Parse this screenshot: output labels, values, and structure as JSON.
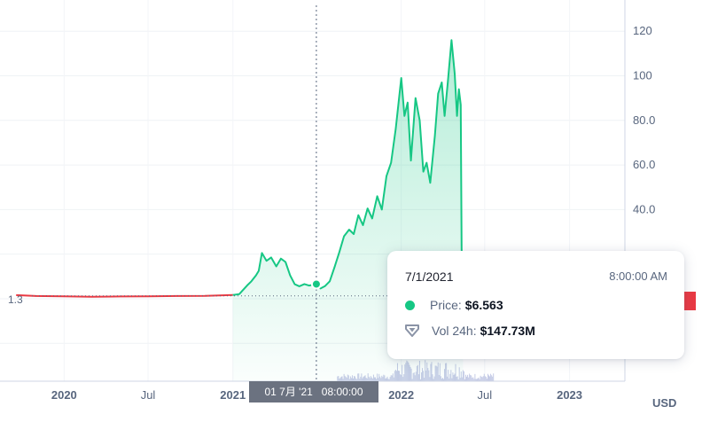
{
  "chart_data": {
    "type": "line",
    "title": "",
    "y_ticks": [
      "40.0",
      "60.0",
      "80.0",
      "100",
      "120"
    ],
    "x_ticks": [
      {
        "label": "2020",
        "bold": true,
        "date": "2020-01-01"
      },
      {
        "label": "Jul",
        "bold": false,
        "date": "2020-07-01"
      },
      {
        "label": "2021",
        "bold": true,
        "date": "2021-01-01"
      },
      {
        "label": "2022",
        "bold": true,
        "date": "2022-01-01"
      },
      {
        "label": "Jul",
        "bold": false,
        "date": "2022-07-01"
      },
      {
        "label": "2023",
        "bold": true,
        "date": "2023-01-01"
      }
    ],
    "x_range": [
      "2019-08-15",
      "2023-05-01"
    ],
    "y_range": [
      -37,
      134
    ],
    "unit": "USD",
    "reference_label": "1.3",
    "reference_value": 1.3,
    "grid": true,
    "series": [
      {
        "color_below_ref": "#ea3943",
        "color_above_ref": "#16c784",
        "points": [
          [
            "2019-09-19",
            1.6
          ],
          [
            "2019-11-01",
            1.2
          ],
          [
            "2020-01-01",
            1.1
          ],
          [
            "2020-03-01",
            0.9
          ],
          [
            "2020-05-01",
            1.0
          ],
          [
            "2020-07-01",
            1.05
          ],
          [
            "2020-09-01",
            1.2
          ],
          [
            "2020-11-01",
            1.3
          ],
          [
            "2021-01-01",
            1.7
          ],
          [
            "2021-01-15",
            2.1
          ],
          [
            "2021-02-01",
            6.0
          ],
          [
            "2021-02-10",
            7.8
          ],
          [
            "2021-02-20",
            10.5
          ],
          [
            "2021-02-26",
            12.5
          ],
          [
            "2021-03-05",
            20.5
          ],
          [
            "2021-03-15",
            17.0
          ],
          [
            "2021-03-25",
            18.5
          ],
          [
            "2021-04-05",
            14.5
          ],
          [
            "2021-04-15",
            18.0
          ],
          [
            "2021-04-25",
            16.5
          ],
          [
            "2021-05-05",
            10.5
          ],
          [
            "2021-05-15",
            6.5
          ],
          [
            "2021-05-25",
            5.6
          ],
          [
            "2021-06-05",
            6.6
          ],
          [
            "2021-06-15",
            5.9
          ],
          [
            "2021-06-25",
            6.3
          ],
          [
            "2021-07-01",
            6.563
          ],
          [
            "2021-07-10",
            4.6
          ],
          [
            "2021-07-20",
            5.7
          ],
          [
            "2021-07-30",
            7.8
          ],
          [
            "2021-08-10",
            14.5
          ],
          [
            "2021-08-20",
            21.0
          ],
          [
            "2021-08-30",
            28.0
          ],
          [
            "2021-09-10",
            31.0
          ],
          [
            "2021-09-20",
            29.0
          ],
          [
            "2021-09-30",
            37.5
          ],
          [
            "2021-10-10",
            33.0
          ],
          [
            "2021-10-20",
            40.5
          ],
          [
            "2021-10-30",
            36.0
          ],
          [
            "2021-11-10",
            46.0
          ],
          [
            "2021-11-20",
            40.0
          ],
          [
            "2021-11-30",
            55.0
          ],
          [
            "2021-12-10",
            61.0
          ],
          [
            "2021-12-20",
            76.0
          ],
          [
            "2022-01-01",
            99.0
          ],
          [
            "2022-01-08",
            82.0
          ],
          [
            "2022-01-15",
            88.0
          ],
          [
            "2022-01-22",
            62.0
          ],
          [
            "2022-02-01",
            90.0
          ],
          [
            "2022-02-10",
            80.0
          ],
          [
            "2022-02-18",
            57.0
          ],
          [
            "2022-02-25",
            61.0
          ],
          [
            "2022-03-05",
            52.0
          ],
          [
            "2022-03-15",
            73.0
          ],
          [
            "2022-03-22",
            92.0
          ],
          [
            "2022-03-30",
            97.0
          ],
          [
            "2022-04-05",
            82.0
          ],
          [
            "2022-04-12",
            97.0
          ],
          [
            "2022-04-20",
            116.0
          ],
          [
            "2022-04-27",
            101.0
          ],
          [
            "2022-05-02",
            82.0
          ],
          [
            "2022-05-06",
            94.0
          ],
          [
            "2022-05-10",
            87.0
          ],
          [
            "2022-05-12",
            22.0
          ],
          [
            "2022-05-15",
            8.0
          ]
        ]
      }
    ],
    "volume_note": "faint volume bars along the bottom"
  },
  "crosshair": {
    "date": "2021-07-01",
    "value": 6.563,
    "axis_label": "01 7月 '21   08:00:00"
  },
  "tooltip": {
    "date": "7/1/2021",
    "time": "8:00:00 AM",
    "price_label": "Price:",
    "price_value": "$6.563",
    "volume_label": "Vol 24h:",
    "volume_value": "$147.73M"
  },
  "colors": {
    "up": "#16c784",
    "down": "#ea3943",
    "axis_text": "#58667e",
    "crosshair_bg": "#6b7280"
  },
  "icons": {
    "price": "green-dot-icon",
    "volume": "volume-shield-icon"
  }
}
